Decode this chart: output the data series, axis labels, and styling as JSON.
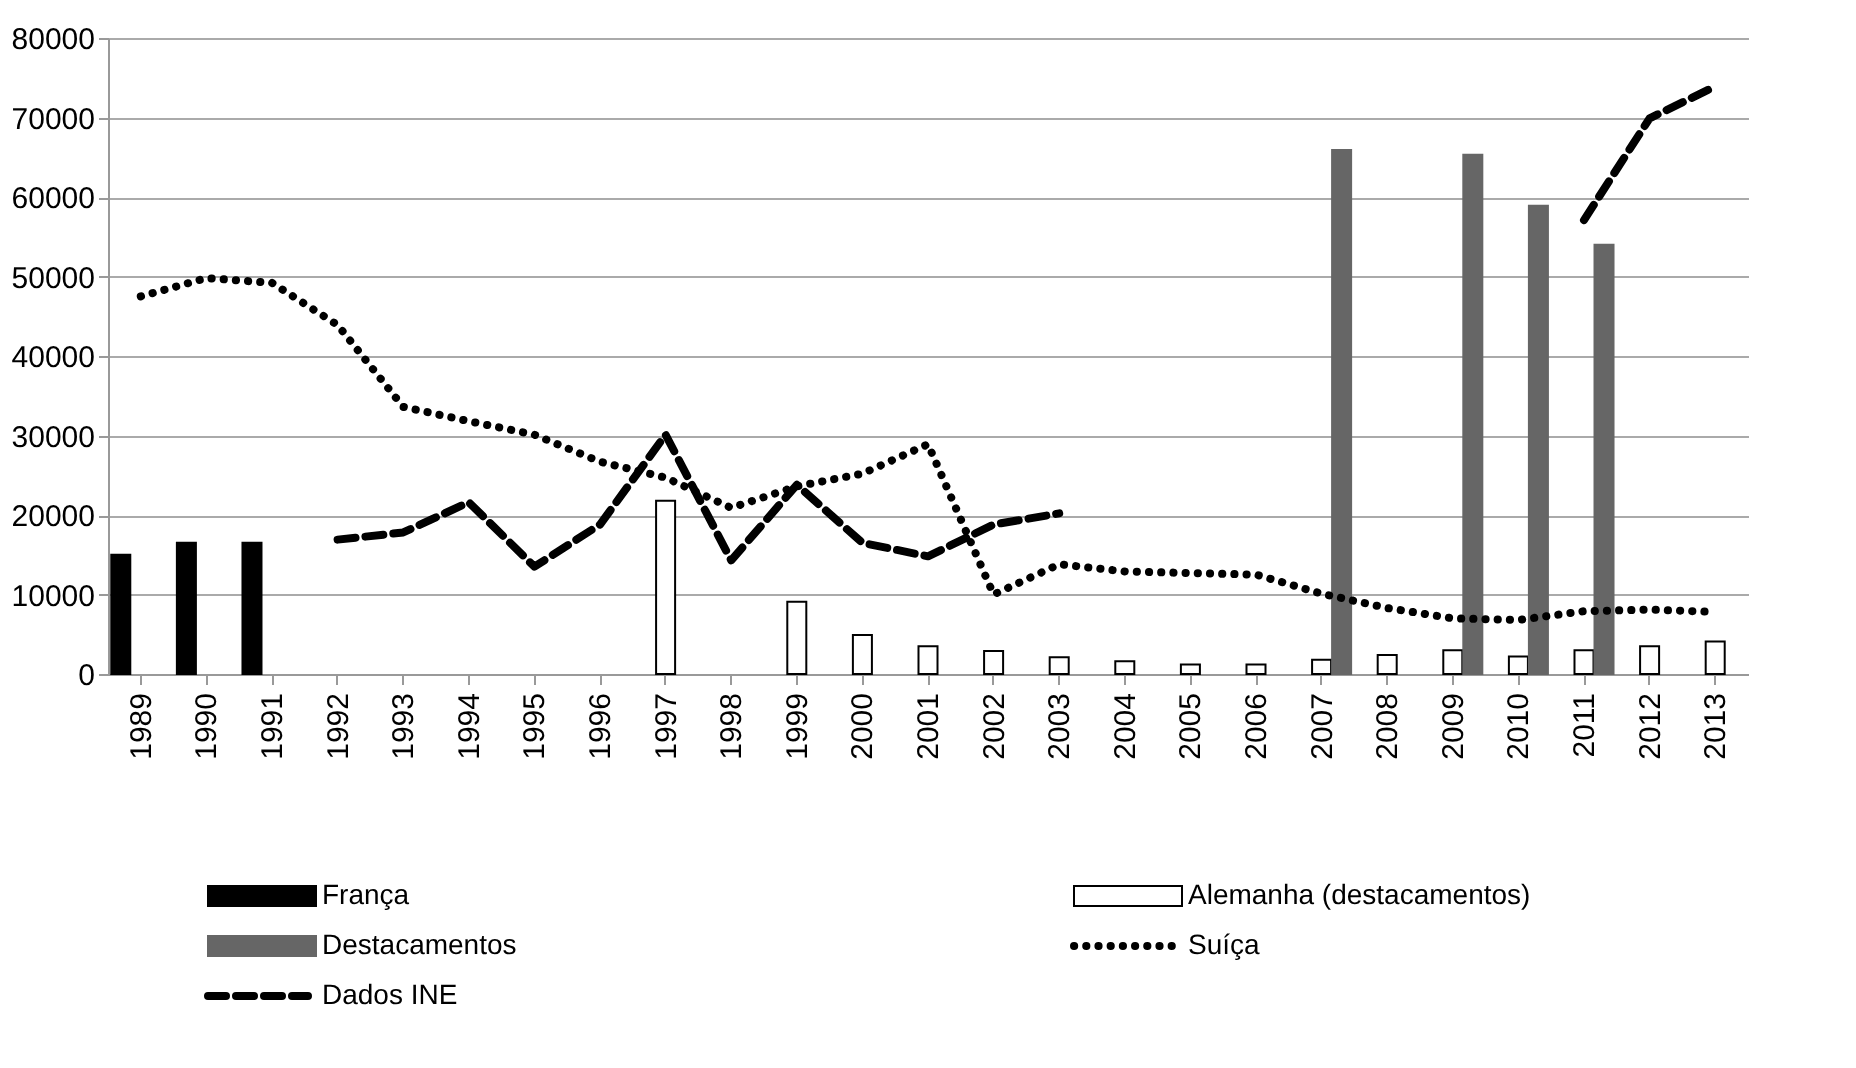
{
  "chart_data": {
    "type": "bar",
    "categories": [
      "1989",
      "1990",
      "1991",
      "1992",
      "1993",
      "1994",
      "1995",
      "1996",
      "1997",
      "1998",
      "1999",
      "2000",
      "2001",
      "2002",
      "2003",
      "2004",
      "2005",
      "2006",
      "2007",
      "2008",
      "2009",
      "2010",
      "2011",
      "2012",
      "2013"
    ],
    "series": [
      {
        "name": "França",
        "color": "#000000",
        "values": [
          15000,
          16500,
          16500,
          null,
          null,
          null,
          null,
          null,
          null,
          null,
          null,
          null,
          null,
          null,
          null,
          null,
          null,
          null,
          null,
          null,
          null,
          null,
          null,
          null,
          null
        ]
      },
      {
        "name": "Alemanha (destacamentos)",
        "color": "#ffffff",
        "values": [
          null,
          null,
          null,
          null,
          null,
          null,
          null,
          null,
          21800,
          null,
          9100,
          4900,
          3500,
          2900,
          2100,
          1600,
          1200,
          1200,
          1800,
          2400,
          3000,
          2200,
          3000,
          3500,
          4100
        ]
      },
      {
        "name": "Destacamentos",
        "color": "#666666",
        "values": [
          null,
          null,
          null,
          null,
          null,
          null,
          null,
          null,
          null,
          null,
          null,
          null,
          null,
          null,
          null,
          null,
          null,
          null,
          65900,
          null,
          65300,
          58900,
          54000,
          null,
          null
        ]
      },
      {
        "name": "Suíça",
        "type": "line",
        "line_style": "dotted",
        "color": "#000000",
        "values": [
          47500,
          49800,
          49200,
          43900,
          33600,
          31800,
          30100,
          26700,
          24700,
          20900,
          23600,
          25200,
          28900,
          10000,
          13800,
          12900,
          12700,
          12500,
          10100,
          8300,
          7000,
          6800,
          7900,
          8100,
          7800
        ]
      },
      {
        "name": "Dados INE",
        "type": "line",
        "line_style": "dashed",
        "color": "#000000",
        "values": [
          null,
          null,
          null,
          16900,
          17800,
          21600,
          13500,
          18800,
          30100,
          14300,
          23800,
          16500,
          14800,
          18800,
          20200,
          null,
          null,
          null,
          null,
          null,
          null,
          null,
          57100,
          69900,
          73900
        ]
      }
    ],
    "ylim": [
      0,
      80000
    ],
    "yticks": [
      0,
      10000,
      20000,
      30000,
      40000,
      50000,
      60000,
      70000,
      80000
    ],
    "grid": "y",
    "legend": "bottom"
  }
}
